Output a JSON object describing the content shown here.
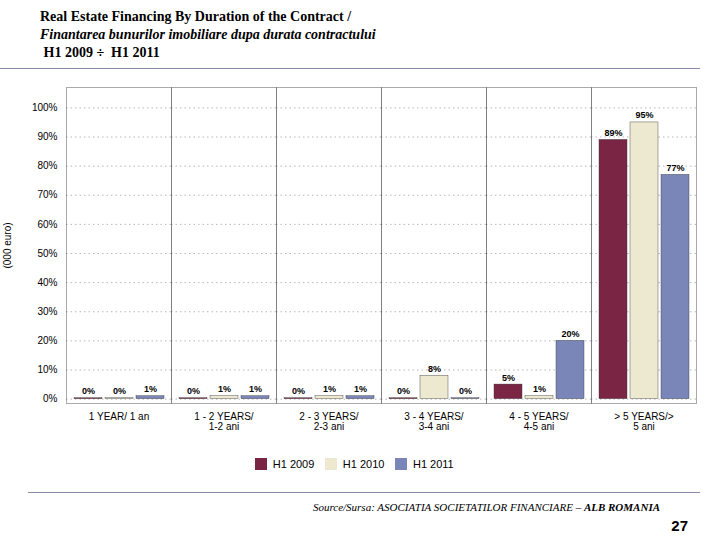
{
  "chart_data": {
    "type": "bar",
    "title": "Real Estate Financing By Duration of the Contract /\nFinantarea bunurilor imobiliare dupa durata contractului\n H1 2009 ÷  H1 2011",
    "categories": [
      "1 YEAR/ 1 an",
      "1 - 2 YEARS/\n1-2 ani",
      "2 - 3 YEARS/\n2-3 ani",
      "3 - 4 YEARS/\n3-4 ani",
      "4 - 5 YEARS/\n4-5 ani",
      "> 5 YEARS/>\n5 ani"
    ],
    "series": [
      {
        "name": "H1 2009",
        "color": "#7B2545",
        "values": [
          0.3,
          0.3,
          0.3,
          0.3,
          5,
          89
        ],
        "value_labels": [
          "0%",
          "0%",
          "0%",
          "0%",
          "5%",
          "89%"
        ]
      },
      {
        "name": "H1 2010",
        "color": "#EDE8D0",
        "values": [
          0.3,
          1,
          1,
          8,
          1,
          95
        ],
        "value_labels": [
          "0%",
          "1%",
          "1%",
          "8%",
          "1%",
          "95%"
        ]
      },
      {
        "name": "H1 2011",
        "color": "#7B86B8",
        "values": [
          1,
          1,
          1,
          0.3,
          20,
          77
        ],
        "value_labels": [
          "1%",
          "1%",
          "1%",
          "0%",
          "20%",
          "77%"
        ]
      }
    ],
    "ylabel": "(000 euro)",
    "ylim": [
      -1.5,
      107
    ],
    "yticks": [
      {
        "value": 0,
        "label": "0%"
      },
      {
        "value": 10,
        "label": "10%"
      },
      {
        "value": 20,
        "label": "20%"
      },
      {
        "value": 30,
        "label": "30%"
      },
      {
        "value": 40,
        "label": "40%"
      },
      {
        "value": 50,
        "label": "50%"
      },
      {
        "value": 60,
        "label": "60%"
      },
      {
        "value": 70,
        "label": "70%"
      },
      {
        "value": 80,
        "label": "80%"
      },
      {
        "value": 90,
        "label": "90%"
      },
      {
        "value": 100,
        "label": "100%"
      }
    ],
    "grid": true,
    "legend": "lower center",
    "data_labels": true,
    "caption": [
      "Source/Sursa: ASOCIATIA SOCIETATILOR FINANCIARE – ",
      "ALB ROMANIA"
    ],
    "annotations": [
      "27"
    ]
  }
}
